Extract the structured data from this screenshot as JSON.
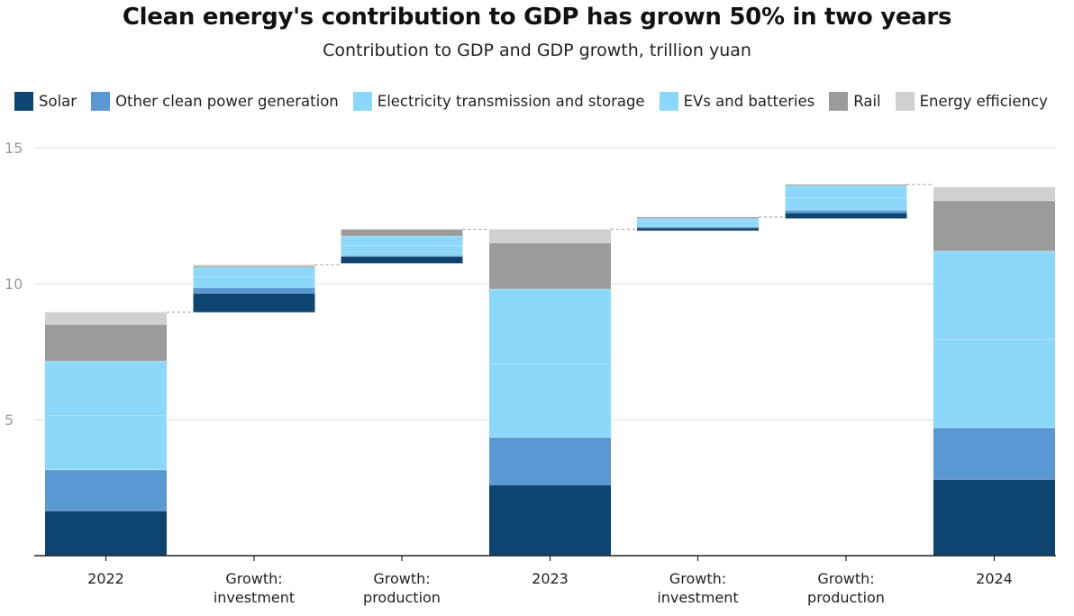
{
  "chart_data": {
    "type": "bar",
    "title": "Clean energy's contribution to GDP has grown 50% in two years",
    "subtitle": "Contribution to GDP and GDP growth, trillion yuan",
    "categories": [
      "2022",
      "Growth: investment",
      "Growth: production",
      "2023",
      "Growth: investment",
      "Growth: production",
      "2024"
    ],
    "category_lines": [
      [
        "2022"
      ],
      [
        "Growth:",
        "investment"
      ],
      [
        "Growth:",
        "production"
      ],
      [
        "2023"
      ],
      [
        "Growth:",
        "investment"
      ],
      [
        "Growth:",
        "production"
      ],
      [
        "2024"
      ]
    ],
    "bases": [
      0,
      8.95,
      10.75,
      0,
      11.95,
      12.4,
      0
    ],
    "series": [
      {
        "name": "Solar",
        "color": "#0d4470",
        "values": [
          1.65,
          0.7,
          0.25,
          2.6,
          0.1,
          0.2,
          2.8
        ]
      },
      {
        "name": "Other clean power generation",
        "color": "#5b97d3",
        "values": [
          1.5,
          0.2,
          0.05,
          1.75,
          0.05,
          0.1,
          1.9
        ]
      },
      {
        "name": "Electricity transmission and storage",
        "color": "#8cd8fb",
        "values": [
          2.0,
          0.4,
          0.35,
          2.7,
          0.2,
          0.45,
          3.25
        ]
      },
      {
        "name": "EVs and batteries",
        "color": "#8cd8fb",
        "values": [
          2.0,
          0.35,
          0.35,
          2.75,
          0.1,
          0.45,
          3.25
        ]
      },
      {
        "name": "Rail",
        "color": "#9b9b9b",
        "values": [
          1.35,
          0.05,
          0.25,
          1.7,
          0.05,
          0.05,
          1.85
        ]
      },
      {
        "name": "Energy efficiency",
        "color": "#d0d0d0",
        "values": [
          0.45,
          0.05,
          0.0,
          0.5,
          0.0,
          0.0,
          0.5
        ]
      }
    ],
    "y_ticks": [
      5,
      10,
      15
    ],
    "ylim": [
      0,
      16
    ],
    "grid": true,
    "legend_position": "top-left",
    "xlabel": "",
    "ylabel": ""
  }
}
